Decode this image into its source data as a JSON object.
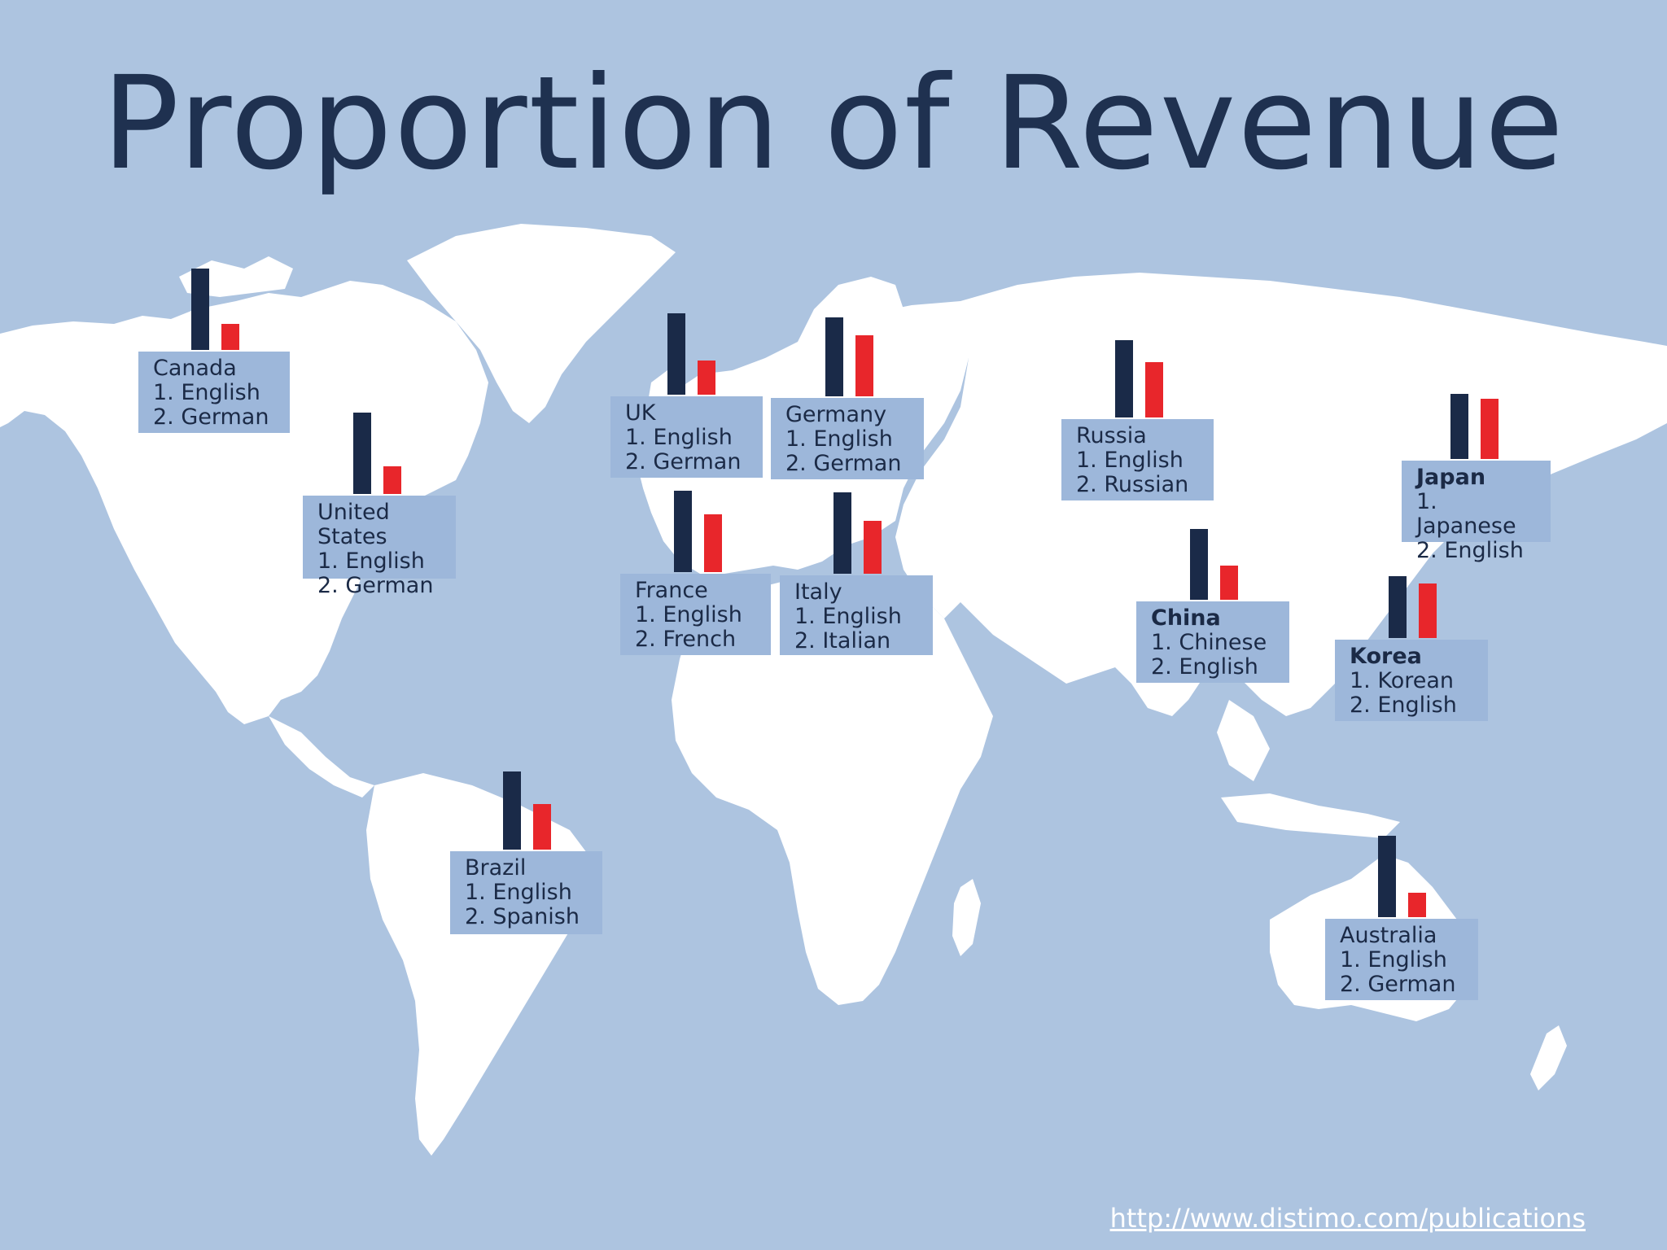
{
  "title": "Proportion of Revenue",
  "source_url": "http://www.distimo.com/publications",
  "colors": {
    "ocean": "#adc4e0",
    "land": "#ffffff",
    "card": "#9db7da",
    "primary_bar": "#1a2a48",
    "secondary_bar": "#e8262b",
    "title": "#1f3150"
  },
  "countries": [
    {
      "id": "canada",
      "name": "Canada",
      "bold": false,
      "lang1": "1. English",
      "lang2": "2. German",
      "primary_share": 1.0,
      "secondary_share": 0.32
    },
    {
      "id": "united-states",
      "name": "United States",
      "bold": false,
      "lang1": "1. English",
      "lang2": "2. German",
      "primary_share": 1.0,
      "secondary_share": 0.34
    },
    {
      "id": "uk",
      "name": "UK",
      "bold": false,
      "lang1": "1. English",
      "lang2": "2. German",
      "primary_share": 1.0,
      "secondary_share": 0.42
    },
    {
      "id": "germany",
      "name": "Germany",
      "bold": false,
      "lang1": "1. English",
      "lang2": "2. German",
      "primary_share": 1.0,
      "secondary_share": 0.77
    },
    {
      "id": "france",
      "name": "France",
      "bold": false,
      "lang1": "1. English",
      "lang2": "2. French",
      "primary_share": 1.0,
      "secondary_share": 0.71
    },
    {
      "id": "italy",
      "name": "Italy",
      "bold": false,
      "lang1": "1. English",
      "lang2": "2. Italian",
      "primary_share": 1.0,
      "secondary_share": 0.65
    },
    {
      "id": "russia",
      "name": "Russia",
      "bold": false,
      "lang1": "1. English",
      "lang2": "2. Russian",
      "primary_share": 1.0,
      "secondary_share": 0.72
    },
    {
      "id": "japan",
      "name": "Japan",
      "bold": true,
      "lang1": "1. Japanese",
      "lang2": "2. English",
      "primary_share": 1.0,
      "secondary_share": 0.92
    },
    {
      "id": "china",
      "name": "China",
      "bold": true,
      "lang1": "1. Chinese",
      "lang2": "2. English",
      "primary_share": 1.0,
      "secondary_share": 0.48
    },
    {
      "id": "korea",
      "name": "Korea",
      "bold": true,
      "lang1": "1. Korean",
      "lang2": "2. English",
      "primary_share": 1.0,
      "secondary_share": 0.88
    },
    {
      "id": "brazil",
      "name": "Brazil",
      "bold": false,
      "lang1": "1. English",
      "lang2": "2. Spanish",
      "primary_share": 1.0,
      "secondary_share": 0.58
    },
    {
      "id": "australia",
      "name": "Australia",
      "bold": false,
      "lang1": "1. English",
      "lang2": "2. German",
      "primary_share": 1.0,
      "secondary_share": 0.3
    }
  ]
}
